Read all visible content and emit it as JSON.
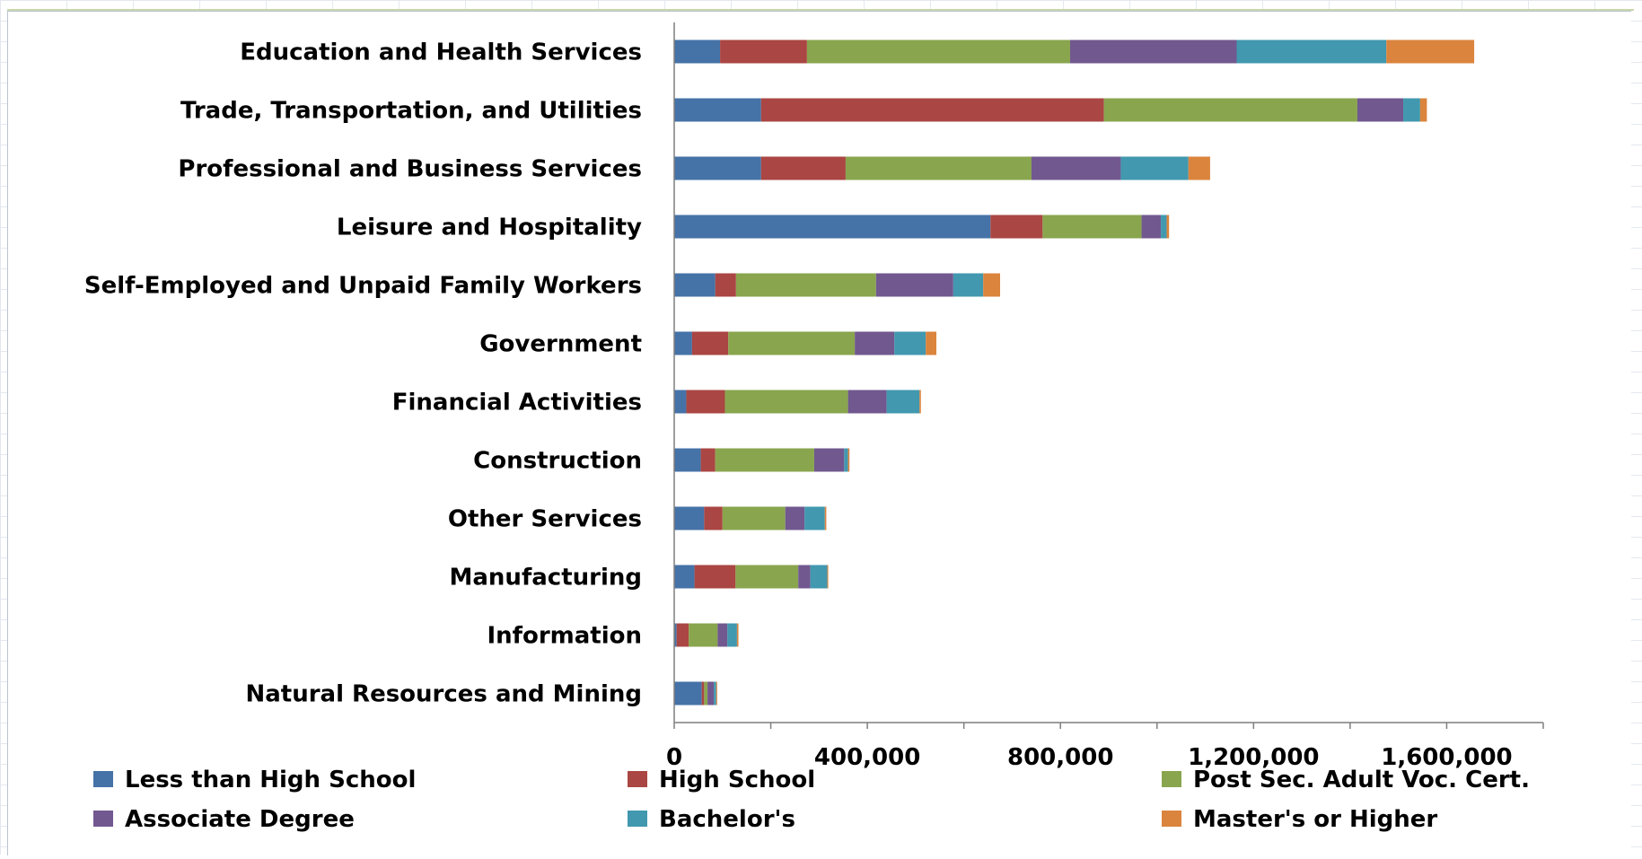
{
  "chart_data": {
    "type": "bar",
    "orientation": "horizontal",
    "stacked": true,
    "title": "",
    "xlabel": "",
    "ylabel": "",
    "xlim": [
      0,
      1800000
    ],
    "x_ticks": [
      0,
      400000,
      800000,
      1200000,
      1600000
    ],
    "x_tick_labels": [
      "0",
      "400,000",
      "800,000",
      "1,200,000",
      "1,600,000"
    ],
    "grid": false,
    "legend_position": "bottom",
    "categories": [
      "Education and Health Services",
      "Trade, Transportation, and Utilities",
      "Professional and Business Services",
      "Leisure and Hospitality",
      "Self-Employed and Unpaid Family Workers",
      "Government",
      "Financial Activities",
      "Construction",
      "Other Services",
      "Manufacturing",
      "Information",
      "Natural Resources and Mining"
    ],
    "series": [
      {
        "name": "Less than High School",
        "color": "#4572a7",
        "values": [
          95000,
          180000,
          180000,
          655000,
          85000,
          37000,
          25000,
          55000,
          62000,
          42000,
          5000,
          57000
        ]
      },
      {
        "name": "High School",
        "color": "#aa4643",
        "values": [
          180000,
          710000,
          175000,
          108000,
          43000,
          75000,
          80000,
          30000,
          38000,
          85000,
          25000,
          5000
        ]
      },
      {
        "name": "Post Sec. Adult Voc. Cert.",
        "color": "#89a54e",
        "values": [
          545000,
          525000,
          385000,
          205000,
          290000,
          262000,
          255000,
          205000,
          130000,
          130000,
          60000,
          7000
        ]
      },
      {
        "name": "Associate Degree",
        "color": "#71588f",
        "values": [
          345000,
          95000,
          185000,
          40000,
          160000,
          82000,
          80000,
          62000,
          40000,
          25000,
          20000,
          13000
        ]
      },
      {
        "name": "Bachelor's",
        "color": "#4198af",
        "values": [
          310000,
          35000,
          140000,
          12000,
          62000,
          65000,
          68000,
          8000,
          42000,
          35000,
          20000,
          5000
        ]
      },
      {
        "name": "Master's or Higher",
        "color": "#db843d",
        "values": [
          182000,
          14000,
          45000,
          5000,
          35000,
          22000,
          3000,
          3000,
          3000,
          2000,
          3000,
          2000
        ]
      }
    ]
  }
}
